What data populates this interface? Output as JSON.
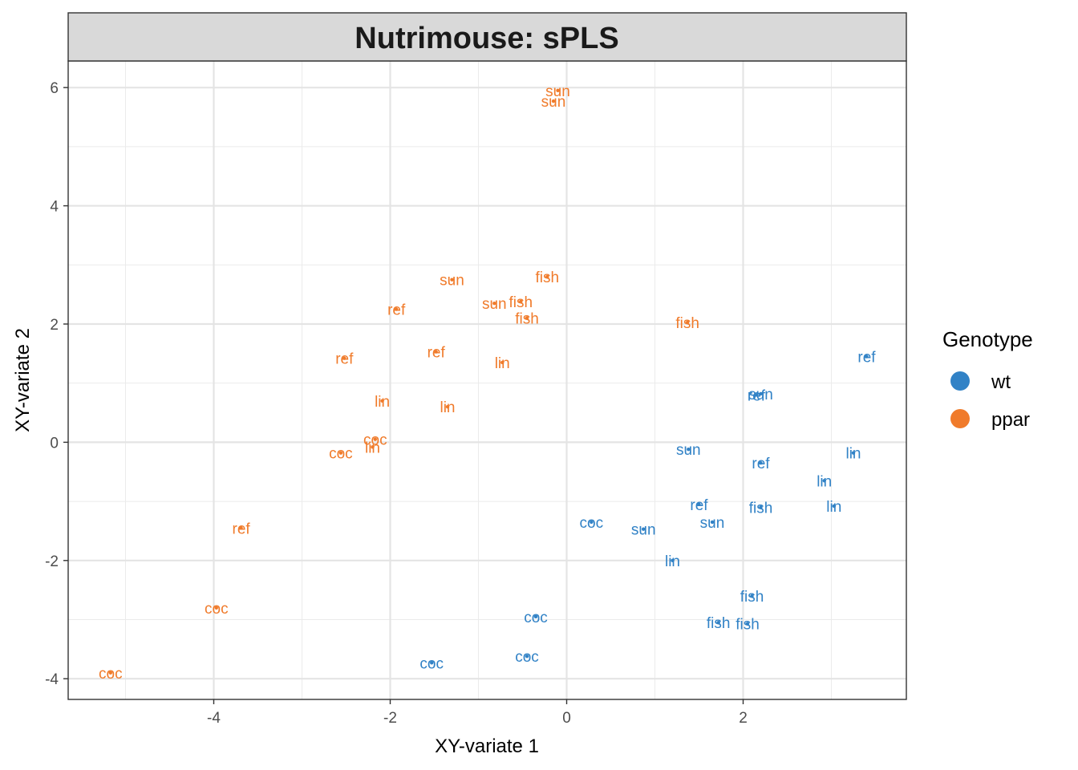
{
  "chart_data": {
    "type": "scatter",
    "title": "Nutrimouse: sPLS",
    "xlabel": "XY-variate 1",
    "ylabel": "XY-variate 2",
    "xlim": [
      -5.65,
      3.85
    ],
    "ylim": [
      -4.35,
      6.45
    ],
    "x_ticks": [
      -4,
      -2,
      0,
      2
    ],
    "y_ticks": [
      -4,
      -2,
      0,
      2,
      4,
      6
    ],
    "grid": true,
    "legend": {
      "title": "Genotype",
      "position": "right",
      "entries": [
        {
          "label": "wt",
          "color": "#3182C6"
        },
        {
          "label": "ppar",
          "color": "#F07B2B"
        }
      ]
    },
    "series": [
      {
        "name": "wt",
        "color": "#3182C6",
        "points": [
          {
            "x": 3.4,
            "y": 1.45,
            "label": "ref"
          },
          {
            "x": 2.15,
            "y": 0.8,
            "label": "ref"
          },
          {
            "x": 2.2,
            "y": 0.82,
            "label": "sun"
          },
          {
            "x": 1.38,
            "y": -0.12,
            "label": "sun"
          },
          {
            "x": 3.25,
            "y": -0.18,
            "label": "lin"
          },
          {
            "x": 2.2,
            "y": -0.35,
            "label": "ref"
          },
          {
            "x": 2.92,
            "y": -0.65,
            "label": "lin"
          },
          {
            "x": 1.5,
            "y": -1.05,
            "label": "ref"
          },
          {
            "x": 3.03,
            "y": -1.08,
            "label": "lin"
          },
          {
            "x": 2.2,
            "y": -1.1,
            "label": "fish"
          },
          {
            "x": 0.28,
            "y": -1.35,
            "label": "coc"
          },
          {
            "x": 1.65,
            "y": -1.35,
            "label": "sun"
          },
          {
            "x": 0.87,
            "y": -1.47,
            "label": "sun"
          },
          {
            "x": 1.2,
            "y": -2.0,
            "label": "lin"
          },
          {
            "x": 2.1,
            "y": -2.6,
            "label": "fish"
          },
          {
            "x": -0.35,
            "y": -2.95,
            "label": "coc"
          },
          {
            "x": 1.72,
            "y": -3.05,
            "label": "fish"
          },
          {
            "x": 2.05,
            "y": -3.07,
            "label": "fish"
          },
          {
            "x": -0.45,
            "y": -3.62,
            "label": "coc"
          },
          {
            "x": -1.53,
            "y": -3.73,
            "label": "coc"
          }
        ]
      },
      {
        "name": "ppar",
        "color": "#F07B2B",
        "points": [
          {
            "x": -0.1,
            "y": 5.95,
            "label": "sun"
          },
          {
            "x": -0.15,
            "y": 5.77,
            "label": "sun"
          },
          {
            "x": -0.22,
            "y": 2.8,
            "label": "fish"
          },
          {
            "x": -1.3,
            "y": 2.75,
            "label": "sun"
          },
          {
            "x": -0.82,
            "y": 2.35,
            "label": "sun"
          },
          {
            "x": -0.52,
            "y": 2.38,
            "label": "fish"
          },
          {
            "x": -1.93,
            "y": 2.25,
            "label": "ref"
          },
          {
            "x": -0.45,
            "y": 2.1,
            "label": "fish"
          },
          {
            "x": 1.37,
            "y": 2.03,
            "label": "fish"
          },
          {
            "x": -1.48,
            "y": 1.53,
            "label": "ref"
          },
          {
            "x": -2.52,
            "y": 1.42,
            "label": "ref"
          },
          {
            "x": -0.73,
            "y": 1.35,
            "label": "lin"
          },
          {
            "x": -2.09,
            "y": 0.7,
            "label": "lin"
          },
          {
            "x": -1.35,
            "y": 0.6,
            "label": "lin"
          },
          {
            "x": -2.17,
            "y": 0.05,
            "label": "coc"
          },
          {
            "x": -2.2,
            "y": -0.08,
            "label": "lin"
          },
          {
            "x": -2.56,
            "y": -0.18,
            "label": "coc"
          },
          {
            "x": -3.69,
            "y": -1.45,
            "label": "ref"
          },
          {
            "x": -3.97,
            "y": -2.8,
            "label": "coc"
          },
          {
            "x": -5.17,
            "y": -3.9,
            "label": "coc"
          }
        ]
      }
    ]
  }
}
